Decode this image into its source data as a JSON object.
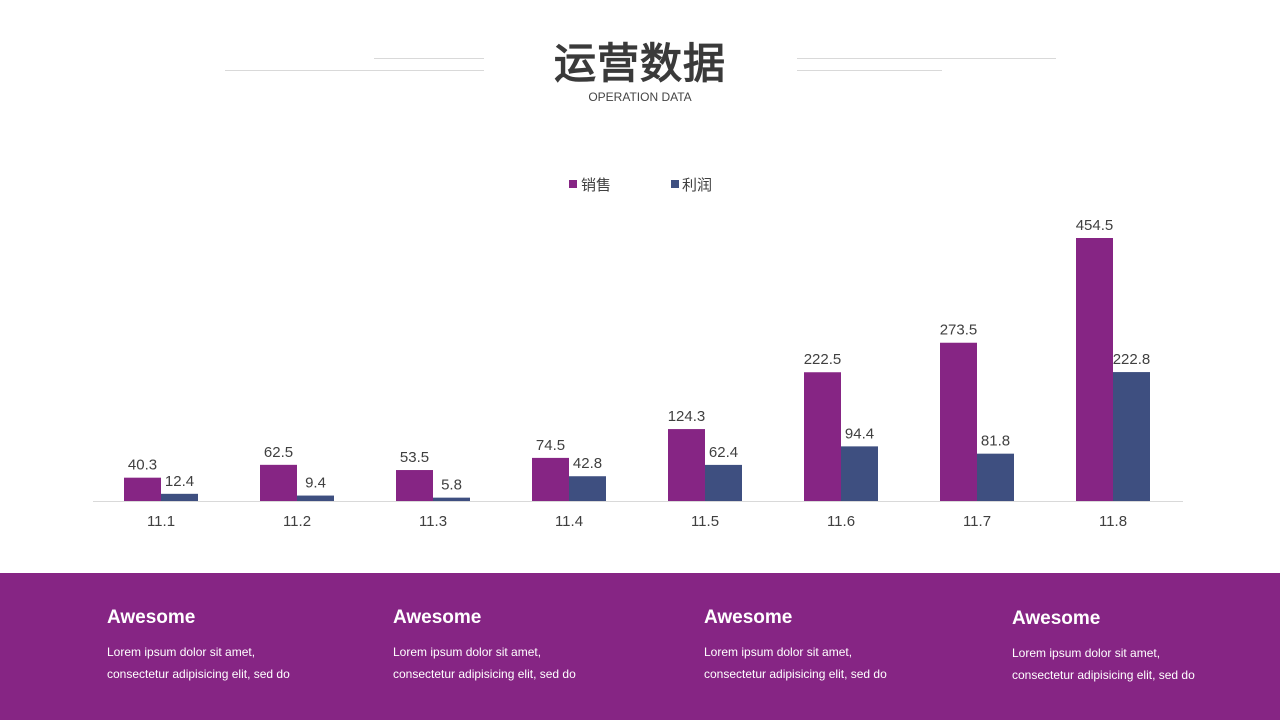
{
  "header": {
    "title": "运营数据",
    "subtitle": "OPERATION DATA"
  },
  "colors": {
    "sales": "#862584",
    "profit": "#3e4f80",
    "footer_bg": "#862584",
    "axis": "#d9d9d9",
    "label": "#404040"
  },
  "chart_data": {
    "type": "bar",
    "categories": [
      "11.1",
      "11.2",
      "11.3",
      "11.4",
      "11.5",
      "11.6",
      "11.7",
      "11.8"
    ],
    "series": [
      {
        "name": "销售",
        "values": [
          40.3,
          62.5,
          53.5,
          74.5,
          124.3,
          222.5,
          273.5,
          454.5
        ]
      },
      {
        "name": "利润",
        "values": [
          12.4,
          9.4,
          5.8,
          42.8,
          62.4,
          94.4,
          81.8,
          222.8
        ]
      }
    ],
    "legend": "top-center",
    "grid": false,
    "ylim": [
      0,
      454.5
    ]
  },
  "footer": {
    "cards": [
      {
        "title": "Awesome",
        "line1": "Lorem ipsum dolor sit amet,",
        "line2": "consectetur adipisicing elit, sed do"
      },
      {
        "title": "Awesome",
        "line1": "Lorem ipsum dolor sit amet,",
        "line2": "consectetur adipisicing elit, sed do"
      },
      {
        "title": "Awesome",
        "line1": "Lorem ipsum dolor sit amet,",
        "line2": "consectetur adipisicing elit, sed do"
      },
      {
        "title": "Awesome",
        "line1": "Lorem ipsum dolor sit amet,",
        "line2": "consectetur adipisicing elit, sed do"
      }
    ]
  }
}
